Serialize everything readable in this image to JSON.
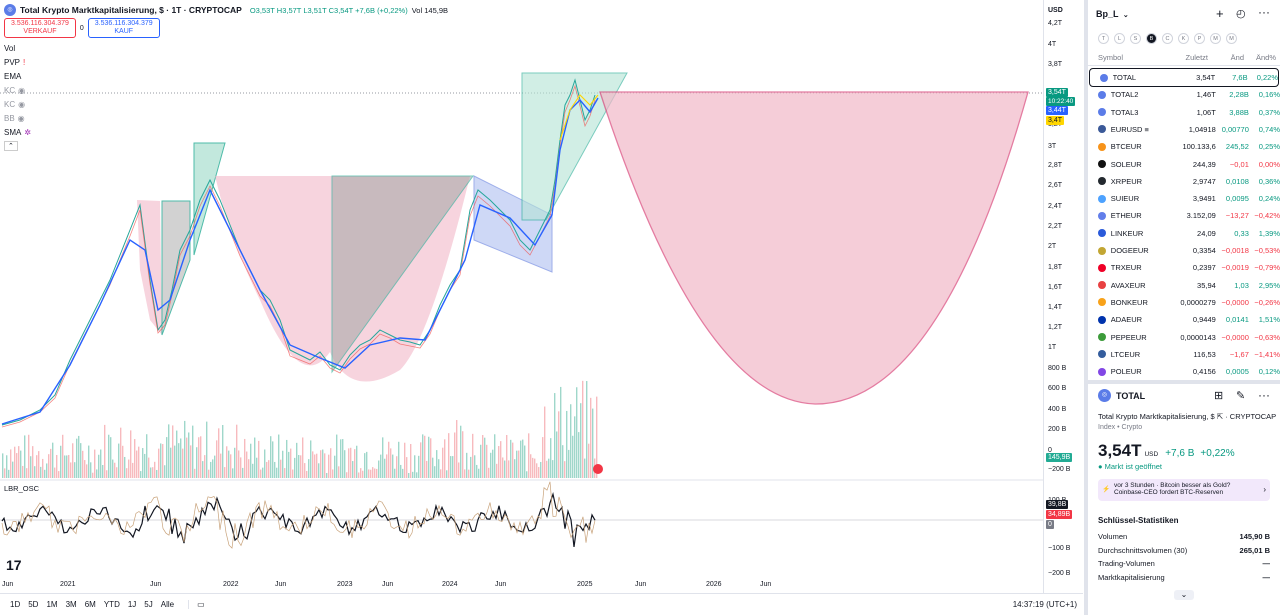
{
  "legend": {
    "title": "Total Krypto Marktkapitalisierung, $ · 1T · CRYPTOCAP",
    "ohlc": "O3,53T H3,57T L3,51T C3,54T +7,6B (+0,22%)",
    "vol": "Vol 145,9B",
    "sell_price": "3.536.116.304.379",
    "sell_label": "VERKAUF",
    "spread": "0",
    "buy_price": "3.536.116.304.379",
    "buy_label": "KAUF",
    "indicators": [
      "Vol",
      "PVP",
      "EMA",
      "KC",
      "KC",
      "BB",
      "SMA"
    ]
  },
  "price_axis": {
    "currency": "USD",
    "labels": [
      "4,2T",
      "4T",
      "3,8T",
      "3,6T",
      "3,2T",
      "3T",
      "2,8T",
      "2,6T",
      "2,4T",
      "2,2T",
      "2T",
      "1,8T",
      "1,6T",
      "1,4T",
      "1,2T",
      "1T",
      "800 B",
      "600 B",
      "400 B",
      "200 B",
      "0",
      "−200 B"
    ],
    "badge_current": "3,54T",
    "badge_countdown": "10:22:40",
    "badge_ema": "3,44T",
    "badge_sma": "3,4T",
    "badge_volume": "145,9B",
    "osc_labels": [
      "100 B",
      "0",
      "−100 B",
      "−200 B"
    ],
    "osc_badge_1": "39,8B",
    "osc_badge_2": "34,89B",
    "osc_badge_3": "0"
  },
  "oscillator": {
    "name": "LBR_OSC"
  },
  "time_axis": [
    "Jun",
    "2021",
    "Jun",
    "2022",
    "Jun",
    "2023",
    "Jun",
    "2024",
    "Jun",
    "2025",
    "Jun",
    "2026",
    "Jun"
  ],
  "bottom_bar": {
    "ranges": [
      "1D",
      "5D",
      "1M",
      "3M",
      "6M",
      "YTD",
      "1J",
      "5J",
      "Alle"
    ],
    "clock": "14:37:19 (UTC+1)"
  },
  "watchlist": {
    "name": "Bp_L",
    "filters": [
      "T",
      "L",
      "S",
      "B",
      "C",
      "K",
      "P",
      "M",
      "M"
    ],
    "headers": {
      "symbol": "Symbol",
      "last": "Zuletzt",
      "chg": "Änd",
      "pct": "Änd%"
    },
    "rows": [
      {
        "sym": "TOTAL",
        "last": "3,54T",
        "chg": "7,6B",
        "pct": "0,22%",
        "color": "#5b7ce8",
        "dir": "pos"
      },
      {
        "sym": "TOTAL2",
        "last": "1,46T",
        "chg": "2,28B",
        "pct": "0,16%",
        "color": "#5b7ce8",
        "dir": "pos"
      },
      {
        "sym": "TOTAL3",
        "last": "1,06T",
        "chg": "3,88B",
        "pct": "0,37%",
        "color": "#5b7ce8",
        "dir": "pos"
      },
      {
        "sym": "EURUSD ≡",
        "last": "1,04918",
        "chg": "0,00770",
        "pct": "0,74%",
        "color": "#3b5998",
        "dir": "pos"
      },
      {
        "sym": "BTCEUR",
        "last": "100.133,6",
        "chg": "245,52",
        "pct": "0,25%",
        "color": "#f7931a",
        "dir": "pos"
      },
      {
        "sym": "SOLEUR",
        "last": "244,39",
        "chg": "−0,01",
        "pct": "0,00%",
        "color": "#111111",
        "dir": "neg"
      },
      {
        "sym": "XRPEUR",
        "last": "2,9747",
        "chg": "0,0108",
        "pct": "0,36%",
        "color": "#23292f",
        "dir": "pos"
      },
      {
        "sym": "SUIEUR",
        "last": "3,9491",
        "chg": "0,0095",
        "pct": "0,24%",
        "color": "#4da2ff",
        "dir": "pos"
      },
      {
        "sym": "ETHEUR",
        "last": "3.152,09",
        "chg": "−13,27",
        "pct": "−0,42%",
        "color": "#627eea",
        "dir": "neg"
      },
      {
        "sym": "LINKEUR",
        "last": "24,09",
        "chg": "0,33",
        "pct": "1,39%",
        "color": "#2a5ada",
        "dir": "pos"
      },
      {
        "sym": "DOGEEUR",
        "last": "0,3354",
        "chg": "−0,0018",
        "pct": "−0,53%",
        "color": "#c2a633",
        "dir": "neg"
      },
      {
        "sym": "TRXEUR",
        "last": "0,2397",
        "chg": "−0,0019",
        "pct": "−0,79%",
        "color": "#ef0027",
        "dir": "neg"
      },
      {
        "sym": "AVAXEUR",
        "last": "35,94",
        "chg": "1,03",
        "pct": "2,95%",
        "color": "#e84142",
        "dir": "pos"
      },
      {
        "sym": "BONKEUR",
        "last": "0,0000279",
        "chg": "−0,0000",
        "pct": "−0,26%",
        "color": "#f8a21a",
        "dir": "neg"
      },
      {
        "sym": "ADAEUR",
        "last": "0,9449",
        "chg": "0,0141",
        "pct": "1,51%",
        "color": "#0033ad",
        "dir": "pos"
      },
      {
        "sym": "PEPEEUR",
        "last": "0,0000143",
        "chg": "−0,0000",
        "pct": "−0,63%",
        "color": "#3c9b3a",
        "dir": "neg"
      },
      {
        "sym": "LTCEUR",
        "last": "116,53",
        "chg": "−1,67",
        "pct": "−1,41%",
        "color": "#345d9d",
        "dir": "neg"
      },
      {
        "sym": "POLEUR",
        "last": "0,4156",
        "chg": "0,0005",
        "pct": "0,12%",
        "color": "#8247e5",
        "dir": "pos"
      }
    ]
  },
  "details": {
    "symbol": "TOTAL",
    "name": "Total Krypto Marktkapitalisierung, $",
    "exchange": "CRYPTOCAP",
    "category": "Index • Crypto",
    "price": "3,54T",
    "currency": "USD",
    "change": "+7,6 B",
    "change_pct": "+0,22%",
    "market_status": "Markt ist geöffnet",
    "news_time": "vor 3 Stunden · Bitcoin besser als Gold?",
    "news_text": "Coinbase-CEO fordert BTC-Reserven",
    "stats_title": "Schlüssel-Statistiken",
    "stats": [
      {
        "label": "Volumen",
        "value": "145,90 B"
      },
      {
        "label": "Durchschnittsvolumen (30)",
        "value": "265,01 B"
      },
      {
        "label": "Trading-Volumen",
        "value": "—"
      },
      {
        "label": "Marktkapitalisierung",
        "value": "—"
      }
    ]
  }
}
